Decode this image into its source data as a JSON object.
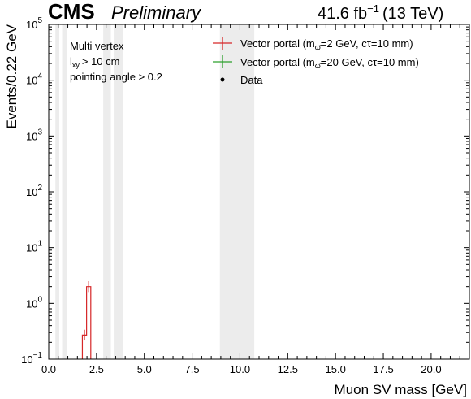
{
  "header": {
    "experiment": "CMS",
    "status": "Preliminary",
    "lumi_text": "41.6 fb",
    "lumi_exp": "−1",
    "energy": "(13 TeV)"
  },
  "annotations": [
    "Multi vertex",
    "> 10 cm",
    "pointing angle > 0.2"
  ],
  "annotation_lxy": {
    "base": "l",
    "sub": "xy"
  },
  "legend": {
    "placement": "top-right",
    "entries": [
      {
        "label": "Vector portal (m",
        "sub": "ω̄",
        "label_rest": "=2 GeV, cτ=10 mm)",
        "color": "#d62728",
        "marker": "cross"
      },
      {
        "label": "Vector portal (m",
        "sub": "ω̄",
        "label_rest": "=20 GeV, cτ=10 mm)",
        "color": "#2ca02c",
        "marker": "cross"
      },
      {
        "label": "Data",
        "color": "#000000",
        "marker": "dot"
      }
    ]
  },
  "chart_data": {
    "type": "histogram",
    "xlabel": "Muon SV mass [GeV]",
    "ylabel": "Events/0.22 GeV",
    "xlim": [
      0,
      22
    ],
    "ylim": [
      0.1,
      100000
    ],
    "yscale": "log",
    "xticks": [
      "0.0",
      "2.5",
      "5.0",
      "7.5",
      "10.0",
      "12.5",
      "15.0",
      "17.5",
      "20.0"
    ],
    "xtick_values": [
      0,
      2.5,
      5,
      7.5,
      10,
      12.5,
      15,
      17.5,
      20
    ],
    "yticks": [
      {
        "base": "10",
        "exp": "−1",
        "value": 0.1
      },
      {
        "base": "10",
        "exp": "0",
        "value": 1
      },
      {
        "base": "10",
        "exp": "1",
        "value": 10
      },
      {
        "base": "10",
        "exp": "2",
        "value": 100
      },
      {
        "base": "10",
        "exp": "3",
        "value": 1000
      },
      {
        "base": "10",
        "exp": "4",
        "value": 10000
      },
      {
        "base": "10",
        "exp": "5",
        "value": 100000
      }
    ],
    "vetoed_regions": [
      [
        0.35,
        0.55
      ],
      [
        0.7,
        0.95
      ],
      [
        2.85,
        3.25
      ],
      [
        3.4,
        3.9
      ],
      [
        8.95,
        10.75
      ]
    ],
    "series": [
      {
        "name": "Vector portal (mω̄=2 GeV, cτ=10 mm)",
        "color": "#d62728",
        "bins": [
          {
            "lo": 1.76,
            "hi": 1.98,
            "value": 0.27
          },
          {
            "lo": 1.98,
            "hi": 2.2,
            "value": 2.0
          }
        ]
      },
      {
        "name": "Vector portal (mω̄=20 GeV, cτ=10 mm)",
        "color": "#2ca02c",
        "bins": []
      },
      {
        "name": "Data",
        "color": "#000000",
        "points": []
      }
    ],
    "grid": false
  }
}
